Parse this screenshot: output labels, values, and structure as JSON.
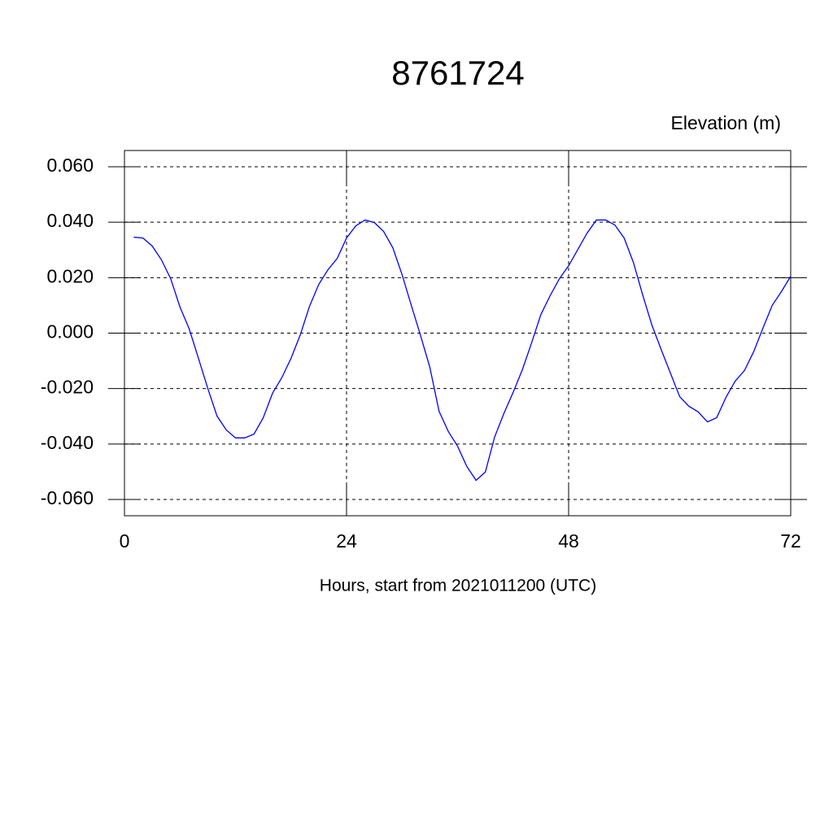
{
  "chart_data": {
    "type": "line",
    "title": "8761724",
    "y_label": "Elevation (m)",
    "x_label": "Hours, start from 2021011200 (UTC)",
    "x": [
      1,
      2,
      3,
      4,
      5,
      6,
      7,
      8,
      9,
      10,
      11,
      12,
      13,
      14,
      15,
      16,
      17,
      18,
      19,
      20,
      21,
      22,
      23,
      24,
      25,
      26,
      27,
      28,
      29,
      30,
      31,
      32,
      33,
      34,
      35,
      36,
      37,
      38,
      39,
      40,
      41,
      42,
      43,
      44,
      45,
      46,
      47,
      48,
      49,
      50,
      51,
      52,
      53,
      54,
      55,
      56,
      57,
      58,
      59,
      60,
      61,
      62,
      63,
      64,
      65,
      66,
      67,
      68,
      69,
      70,
      71,
      72
    ],
    "series": [
      {
        "color": "#0000ff",
        "values": [
          0.0346,
          0.0343,
          0.0314,
          0.0264,
          0.0196,
          0.0094,
          0.0015,
          -0.0091,
          -0.0199,
          -0.0299,
          -0.0349,
          -0.0378,
          -0.0378,
          -0.0364,
          -0.0305,
          -0.0217,
          -0.0161,
          -0.0091,
          -0.0006,
          0.0097,
          0.0176,
          0.0229,
          0.027,
          0.0343,
          0.0387,
          0.0408,
          0.0399,
          0.0367,
          0.0308,
          0.0211,
          0.01,
          -0.0009,
          -0.0123,
          -0.0282,
          -0.0355,
          -0.0408,
          -0.0481,
          -0.0531,
          -0.0501,
          -0.0375,
          -0.029,
          -0.0214,
          -0.0132,
          -0.0035,
          0.0067,
          0.0135,
          0.0196,
          0.0243,
          0.0302,
          0.0361,
          0.0408,
          0.0408,
          0.039,
          0.0343,
          0.0255,
          0.0138,
          0.0029,
          -0.0059,
          -0.0144,
          -0.0229,
          -0.0264,
          -0.0284,
          -0.032,
          -0.0305,
          -0.0232,
          -0.0173,
          -0.0135,
          -0.0067,
          0.0018,
          0.01,
          0.015,
          0.0205
        ]
      }
    ],
    "xlim": [
      0,
      72
    ],
    "xticks": [
      0,
      24,
      48,
      72
    ],
    "ylim": [
      -0.06,
      0.06
    ],
    "yticks": [
      {
        "value": -0.06,
        "label": "-0.060"
      },
      {
        "value": -0.04,
        "label": "-0.040"
      },
      {
        "value": -0.02,
        "label": "-0.020"
      },
      {
        "value": 0,
        "label": "0.000"
      },
      {
        "value": 0.02,
        "label": "0.020"
      },
      {
        "value": 0.04,
        "label": "0.040"
      },
      {
        "value": 0.06,
        "label": "0.060"
      }
    ],
    "grid": true
  }
}
